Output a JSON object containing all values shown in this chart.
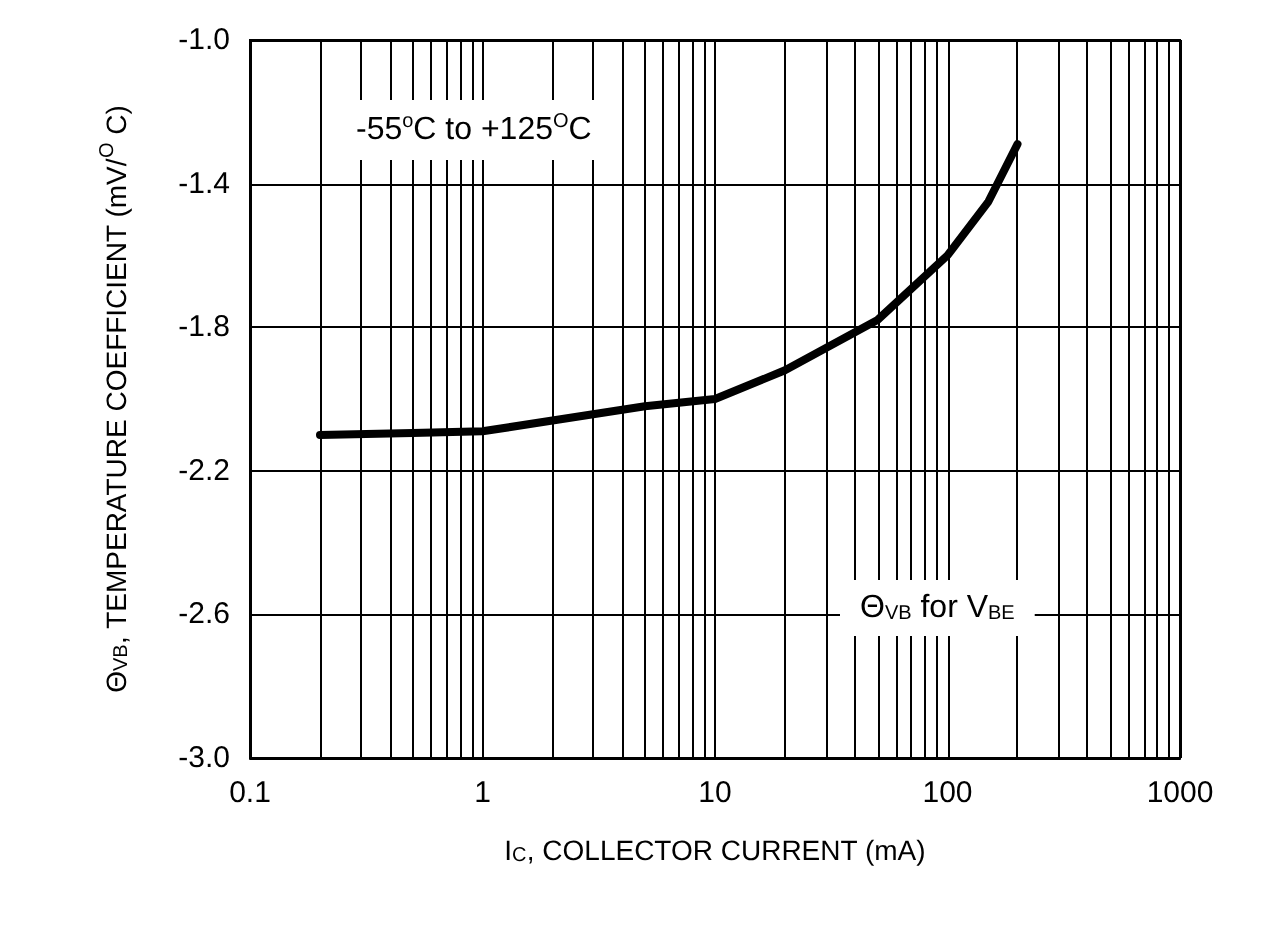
{
  "chart_data": {
    "type": "line",
    "xlabel": "I$_{C}$, COLLECTOR CURRENT (mA)",
    "ylabel": "Θ$_{VB}$, TEMPERATURE COEFFICIENT (mV/$^{O}$ C)",
    "annotations": [
      "-55$^{o}$C to +125$^{O}$C",
      "Θ$_{VB}$ for V$_{BE}$"
    ],
    "series": [
      {
        "color": "#000000",
        "x": [
          0.2,
          0.5,
          1,
          2,
          5,
          10,
          20,
          50,
          100,
          150,
          200
        ],
        "values": [
          -2.1,
          -2.095,
          -2.09,
          -2.06,
          -2.02,
          -2.0,
          -1.92,
          -1.78,
          -1.6,
          -1.45,
          -1.29
        ]
      }
    ],
    "log": "x",
    "xlim": [
      0.1,
      1000
    ],
    "xticks": [
      0.1,
      {
        "value": 0.2,
        "label": null
      },
      {
        "value": 0.3,
        "label": null
      },
      {
        "value": 0.4,
        "label": null
      },
      {
        "value": 0.5,
        "label": null
      },
      {
        "value": 0.6,
        "label": null
      },
      {
        "value": 0.7,
        "label": null
      },
      {
        "value": 0.8,
        "label": null
      },
      {
        "value": 0.9,
        "label": null
      },
      1,
      {
        "value": 2,
        "label": null
      },
      {
        "value": 3,
        "label": null
      },
      {
        "value": 4,
        "label": null
      },
      {
        "value": 5,
        "label": null
      },
      {
        "value": 6,
        "label": null
      },
      {
        "value": 7,
        "label": null
      },
      {
        "value": 8,
        "label": null
      },
      {
        "value": 9,
        "label": null
      },
      10,
      {
        "value": 20,
        "label": null
      },
      {
        "value": 30,
        "label": null
      },
      {
        "value": 40,
        "label": null
      },
      {
        "value": 50,
        "label": null
      },
      {
        "value": 60,
        "label": null
      },
      {
        "value": 70,
        "label": null
      },
      {
        "value": 80,
        "label": null
      },
      {
        "value": 90,
        "label": null
      },
      100,
      {
        "value": 200,
        "label": null
      },
      {
        "value": 300,
        "label": null
      },
      {
        "value": 400,
        "label": null
      },
      {
        "value": 500,
        "label": null
      },
      {
        "value": 600,
        "label": null
      },
      {
        "value": 700,
        "label": null
      },
      {
        "value": 800,
        "label": null
      },
      {
        "value": 900,
        "label": null
      },
      1000
    ],
    "ylim": [
      -3.0,
      -1.0
    ],
    "yticks": [
      {
        "value": -3,
        "label": "-3.0"
      },
      -2.6,
      -2.2,
      -1.8,
      -1.4,
      {
        "value": -1,
        "label": "-1.0"
      }
    ],
    "grid": true,
    "marker": "none",
    "line_style": "solid"
  }
}
